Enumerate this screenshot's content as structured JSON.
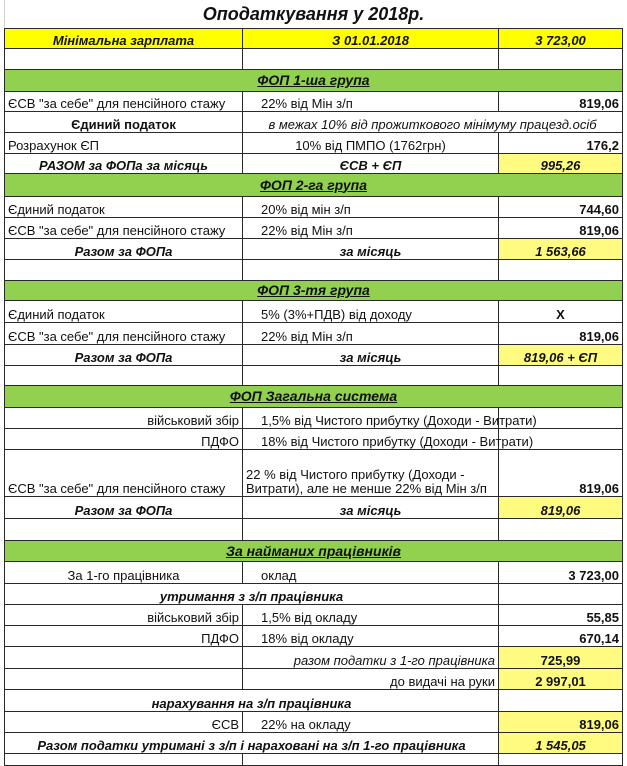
{
  "sheet": {
    "title": "Оподаткування у 2018р.",
    "colors": {
      "min_wage_fill": "#ffff00",
      "section_fill": "#92d050",
      "total_fill": "#fffb80"
    },
    "rows": [
      [
        "Оподаткування у 2018р."
      ],
      [
        "Мінімальна  зарплата",
        "З 01.01.2018",
        "3 723,00"
      ],
      [
        "",
        "",
        ""
      ],
      [
        "ФОП 1-ша група"
      ],
      [
        "ЄСВ \"за себе\" для пенсійного стажу",
        "22% від Мін з/п",
        "819,06"
      ],
      [
        "Єдиний податок",
        "в межах 10% від прожиткового мінімуму працезд.осіб"
      ],
      [
        "Розрахунок ЄП",
        "10% від ПМПО (1762грн)",
        "176,2"
      ],
      [
        "РАЗОМ за ФОПа за місяць",
        "ЄСВ + ЄП",
        "995,26"
      ],
      [
        "ФОП 2-га група"
      ],
      [
        "Єдиний податок",
        "20% від мін з/п",
        "744,60"
      ],
      [
        "ЄСВ \"за себе\" для пенсійного стажу",
        "22% від Мін з/п",
        "819,06"
      ],
      [
        "Разом за ФОПа",
        "за місяць",
        "1 563,66"
      ],
      [
        "",
        "",
        ""
      ],
      [
        "ФОП 3-тя група"
      ],
      [
        "Єдиний податок",
        "5% (3%+ПДВ) від доходу",
        "Х"
      ],
      [
        "ЄСВ \"за себе\" для пенсійного стажу",
        "22% від Мін з/п",
        "819,06"
      ],
      [
        "Разом за ФОПа",
        "за місяць",
        "819,06 + ЄП"
      ],
      [
        "",
        "",
        ""
      ],
      [
        "ФОП Загальна система"
      ],
      [
        "військовий збір",
        "1,5% від Чистого прибутку (Доходи - Витрати)",
        ""
      ],
      [
        "ПДФО",
        "18% від Чистого прибутку (Доходи - Витрати)",
        ""
      ],
      [
        "ЄСВ \"за себе\" для пенсійного стажу",
        "22 % від Чистого прибутку (Доходи - Витрати), але не менше  22% від Мін з/п",
        "819,06"
      ],
      [
        "Разом за ФОПа",
        "за місяць",
        "819,06"
      ],
      [
        "",
        "",
        ""
      ],
      [
        "За найманих працівників"
      ],
      [
        "За 1-го працівника",
        "оклад",
        "3 723,00"
      ],
      [
        "утримання з з/п працівника",
        ""
      ],
      [
        "військовий збір",
        "1,5% від окладу",
        "55,85"
      ],
      [
        "ПДФО",
        "18% від окладу",
        "670,14"
      ],
      [
        "",
        "разом податки з 1-го працівника",
        "725,99"
      ],
      [
        "",
        "до видачі на руки",
        "2 997,01"
      ],
      [
        "нарахування на з/п працівника",
        ""
      ],
      [
        "ЄСВ",
        "22% на окладу",
        "819,06"
      ],
      [
        "Разом податки утримані з з/п і нараховані на з/п 1-го працівника",
        "1 545,05"
      ],
      [
        "",
        "",
        ""
      ]
    ]
  }
}
